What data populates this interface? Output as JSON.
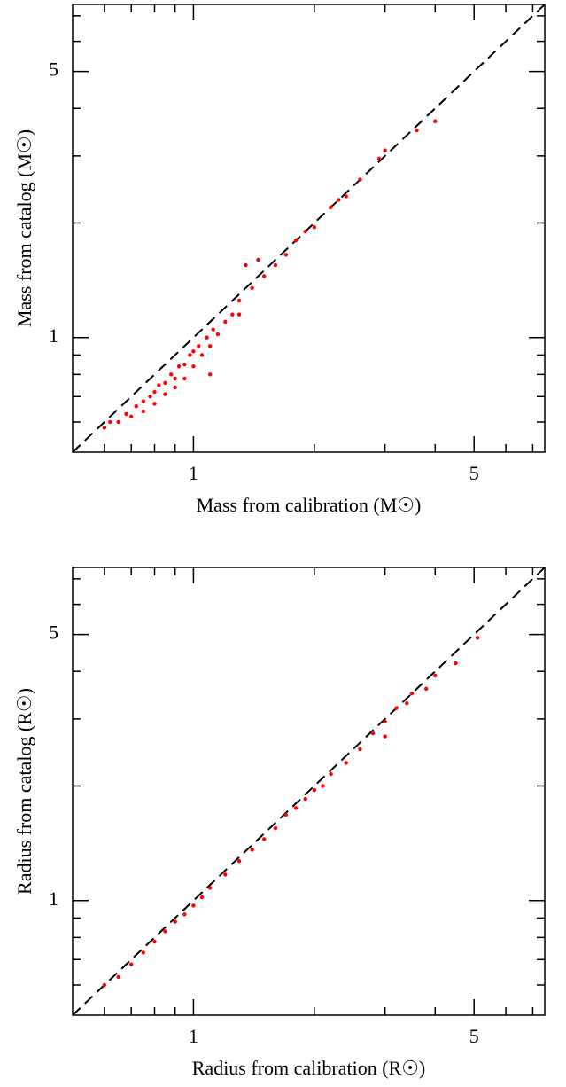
{
  "chart_data": [
    {
      "type": "scatter",
      "x_label": "Mass from calibration (M☉)",
      "y_label": "Mass from catalog (M☉)",
      "x": [
        0.6,
        0.62,
        0.65,
        0.68,
        0.7,
        0.72,
        0.75,
        0.75,
        0.78,
        0.8,
        0.8,
        0.82,
        0.85,
        0.85,
        0.88,
        0.9,
        0.9,
        0.92,
        0.95,
        0.95,
        0.98,
        1.0,
        1.0,
        1.03,
        1.05,
        1.08,
        1.1,
        1.1,
        1.12,
        1.15,
        1.2,
        1.25,
        1.3,
        1.3,
        1.35,
        1.4,
        1.45,
        1.5,
        1.6,
        1.7,
        1.8,
        1.9,
        2.0,
        2.2,
        2.3,
        2.4,
        2.6,
        2.9,
        3.0,
        3.6,
        4.0
      ],
      "y": [
        0.58,
        0.6,
        0.6,
        0.63,
        0.62,
        0.66,
        0.68,
        0.64,
        0.7,
        0.72,
        0.67,
        0.75,
        0.76,
        0.71,
        0.8,
        0.78,
        0.74,
        0.84,
        0.85,
        0.78,
        0.9,
        0.92,
        0.84,
        0.95,
        0.9,
        1.0,
        0.95,
        0.8,
        1.05,
        1.02,
        1.1,
        1.15,
        1.25,
        1.15,
        1.55,
        1.35,
        1.6,
        1.45,
        1.55,
        1.65,
        1.8,
        1.9,
        1.95,
        2.2,
        2.3,
        2.35,
        2.6,
        2.95,
        3.1,
        3.5,
        3.7
      ],
      "color": "#ff0000",
      "log_x": true,
      "log_y": true,
      "identity_line": true,
      "xlim": [
        0.5,
        7.5
      ],
      "ylim": [
        0.5,
        7.5
      ],
      "xticks": [
        1,
        5
      ],
      "yticks": [
        1,
        5
      ],
      "minor_ticks": [
        0.6,
        0.7,
        0.8,
        0.9,
        2,
        3,
        4,
        6,
        7
      ]
    },
    {
      "type": "scatter",
      "x_label": "Radius from calibration (R☉)",
      "y_label": "Radius from catalog (R☉)",
      "x": [
        0.6,
        0.65,
        0.7,
        0.75,
        0.8,
        0.85,
        0.9,
        0.95,
        1.0,
        1.05,
        1.1,
        1.2,
        1.3,
        1.4,
        1.5,
        1.6,
        1.7,
        1.8,
        1.9,
        2.0,
        2.1,
        2.2,
        2.4,
        2.6,
        2.8,
        3.0,
        3.0,
        3.2,
        3.4,
        3.5,
        3.8,
        4.0,
        4.5,
        5.1
      ],
      "y": [
        0.6,
        0.63,
        0.68,
        0.73,
        0.78,
        0.83,
        0.88,
        0.92,
        0.97,
        1.02,
        1.08,
        1.17,
        1.27,
        1.36,
        1.45,
        1.55,
        1.68,
        1.75,
        1.85,
        1.95,
        2.0,
        2.15,
        2.3,
        2.5,
        2.75,
        2.95,
        2.7,
        3.2,
        3.3,
        3.5,
        3.6,
        3.9,
        4.2,
        4.9
      ],
      "color": "#ff0000",
      "log_x": true,
      "log_y": true,
      "identity_line": true,
      "xlim": [
        0.5,
        7.5
      ],
      "ylim": [
        0.5,
        7.5
      ],
      "xticks": [
        1,
        5
      ],
      "yticks": [
        1,
        5
      ],
      "minor_ticks": [
        0.6,
        0.7,
        0.8,
        0.9,
        2,
        3,
        4,
        6,
        7
      ]
    }
  ]
}
